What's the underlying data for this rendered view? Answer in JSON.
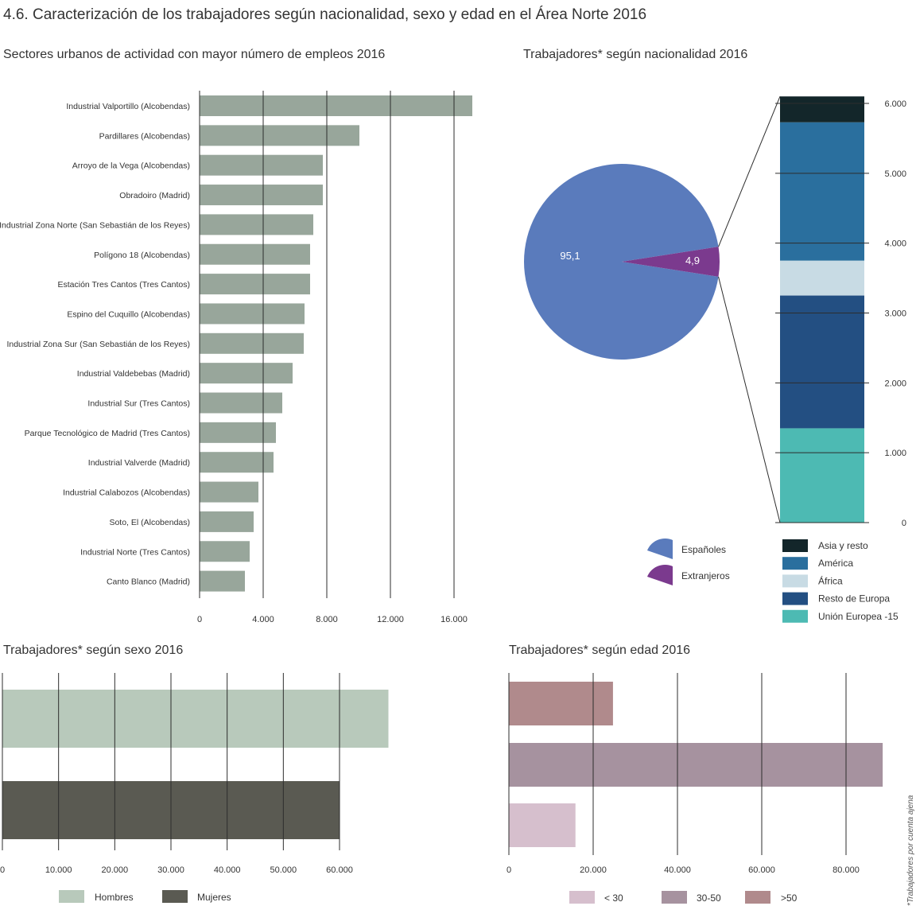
{
  "title": "4.6. Caracterización de los trabajadores según nacionalidad, sexo y edad en el Área Norte 2016",
  "footnote": "*Trabajadores por cuenta ajena",
  "chart_data": [
    {
      "type": "bar",
      "orientation": "horizontal",
      "title": "Sectores urbanos de actividad con mayor número de empleos 2016",
      "categories": [
        "Industrial Valportillo (Alcobendas)",
        "Pardillares (Alcobendas)",
        "Arroyo de la Vega (Alcobendas)",
        "Obradoiro (Madrid)",
        "Industrial Zona Norte (San Sebastián de los Reyes)",
        "Polígono 18 (Alcobendas)",
        "Estación Tres Cantos (Tres Cantos)",
        "Espino del Cuquillo (Alcobendas)",
        "Industrial Zona Sur (San Sebastián de los Reyes)",
        "Industrial Valdebebas (Madrid)",
        "Industrial Sur (Tres Cantos)",
        "Parque Tecnológico de Madrid (Tres Cantos)",
        "Industrial Valverde (Madrid)",
        "Industrial Calabozos (Alcobendas)",
        "Soto, El (Alcobendas)",
        "Industrial Norte (Tres Cantos)",
        "Canto Blanco (Madrid)"
      ],
      "values": [
        17150,
        10050,
        7750,
        7750,
        7150,
        6950,
        6950,
        6600,
        6550,
        5850,
        5200,
        4800,
        4650,
        3700,
        3400,
        3150,
        2850
      ],
      "xlim": [
        0,
        17500
      ],
      "ticks": [
        0,
        4000,
        8000,
        12000,
        16000
      ],
      "tick_labels": [
        "0",
        "4.000",
        "8.000",
        "12.000",
        "16.000"
      ],
      "grid": true,
      "color": "#98a69b"
    },
    {
      "type": "pie",
      "title": "Trabajadores* según nacionalidad 2016",
      "slices": [
        {
          "label": "Españoles",
          "value": 95.1,
          "display": "95,1",
          "color": "#5a7bbc"
        },
        {
          "label": "Extranjeros",
          "value": 4.9,
          "display": "4,9",
          "color": "#7b3a8e"
        }
      ],
      "breakdown": {
        "type": "stacked_bar",
        "ylim": [
          0,
          6000
        ],
        "ticks": [
          0,
          1000,
          2000,
          3000,
          4000,
          5000,
          6000
        ],
        "tick_labels": [
          "0",
          "1.000",
          "2.000",
          "3.000",
          "4.000",
          "5.000",
          "6.000"
        ],
        "segments": [
          {
            "name": "Unión Europea -15",
            "value": 1350,
            "color": "#4dbab3"
          },
          {
            "name": "Resto de Europa",
            "value": 1900,
            "color": "#234f82"
          },
          {
            "name": "África",
            "value": 500,
            "color": "#c8dbe4"
          },
          {
            "name": "América",
            "value": 1980,
            "color": "#2a6f9e"
          },
          {
            "name": "Asia y resto",
            "value": 370,
            "color": "#13262a"
          }
        ],
        "legend_order": [
          "Asia y resto",
          "América",
          "África",
          "Resto de Europa",
          "Unión Europea -15"
        ]
      }
    },
    {
      "type": "bar",
      "orientation": "horizontal",
      "title": "Trabajadores* según sexo 2016",
      "series": [
        {
          "name": "Hombres",
          "value": 68700,
          "color": "#b8c9bb"
        },
        {
          "name": "Mujeres",
          "value": 60000,
          "color": "#5a5a52"
        }
      ],
      "xlim": [
        0,
        70000
      ],
      "ticks": [
        0,
        10000,
        20000,
        30000,
        40000,
        50000,
        60000
      ],
      "tick_labels": [
        "0",
        "10.000",
        "20.000",
        "30.000",
        "40.000",
        "50.000",
        "60.000"
      ],
      "grid": true
    },
    {
      "type": "bar",
      "orientation": "horizontal",
      "title": "Trabajadores* según edad 2016",
      "series": [
        {
          "name": ">50",
          "value": 24700,
          "color": "#b08a8c"
        },
        {
          "name": "30-50",
          "value": 88700,
          "color": "#a6929f"
        },
        {
          "name": "< 30",
          "value": 15800,
          "color": "#d6bfcd"
        }
      ],
      "legend_order": [
        "< 30",
        "30-50",
        ">50"
      ],
      "xlim": [
        0,
        90000
      ],
      "ticks": [
        0,
        20000,
        40000,
        60000,
        80000
      ],
      "tick_labels": [
        "0",
        "20.000",
        "40.000",
        "60.000",
        "80.000"
      ],
      "grid": true
    }
  ]
}
